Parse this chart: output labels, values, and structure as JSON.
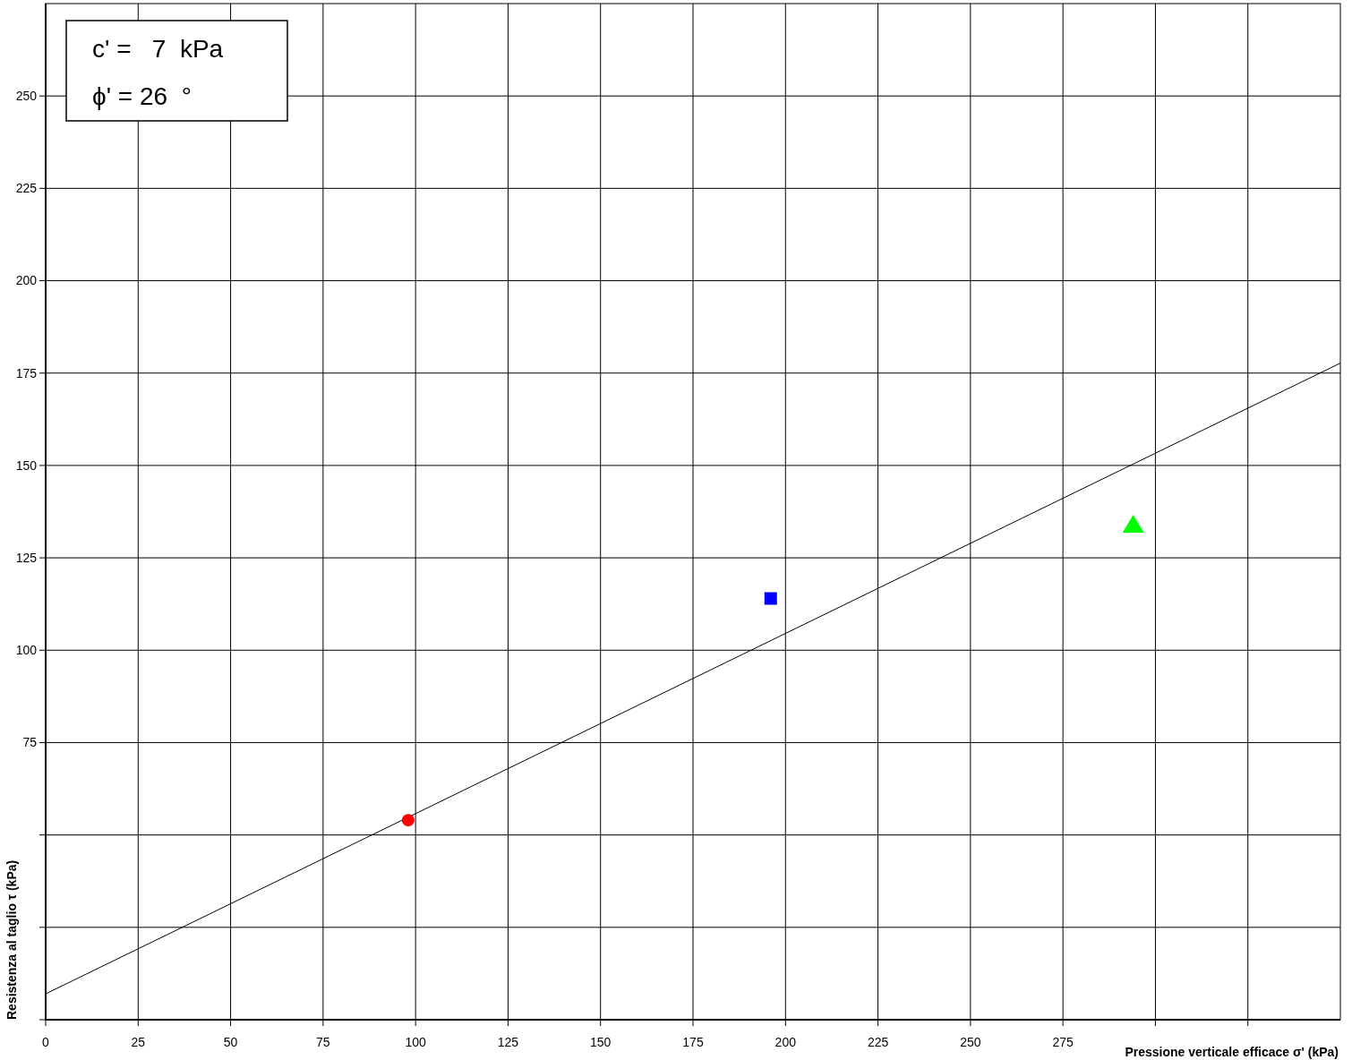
{
  "chart_data": {
    "type": "scatter",
    "xlabel": "Pressione verticale efficace σ' (kPa)",
    "ylabel": "Resistenza al taglio τ (kPa)",
    "annotations": [
      "c' =   7  kPa",
      "ϕ' = 26  °"
    ],
    "xlim": [
      0,
      350
    ],
    "xticks": [
      0,
      25,
      50,
      75,
      100,
      125,
      150,
      175,
      200,
      225,
      250,
      275,
      {
        "value": 300,
        "label": null
      },
      {
        "value": 325,
        "label": null
      }
    ],
    "ylim": [
      0,
      275
    ],
    "yticks": [
      {
        "value": 0,
        "label": null
      },
      {
        "value": 25,
        "label": null
      },
      {
        "value": 50,
        "label": null
      },
      75,
      100,
      125,
      150,
      175,
      200,
      225,
      250
    ],
    "grid": true,
    "series": [
      {
        "type": "line",
        "color": "#000000",
        "x": [
          0,
          350
        ],
        "values": [
          7,
          177.7
        ],
        "marker": "none",
        "line_style": "solid"
      },
      {
        "color": "#ff0000",
        "x": [
          98
        ],
        "values": [
          54
        ],
        "marker": "circle"
      },
      {
        "color": "#0000ff",
        "x": [
          196
        ],
        "values": [
          114
        ],
        "marker": "square"
      },
      {
        "color": "#00ff00",
        "x": [
          294
        ],
        "values": [
          134
        ],
        "marker": "triangle"
      }
    ]
  }
}
